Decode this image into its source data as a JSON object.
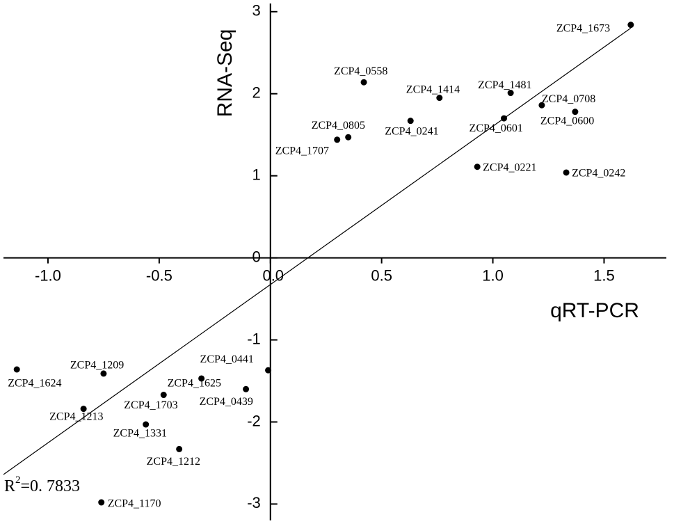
{
  "chart_data": {
    "type": "scatter",
    "x_label": "qRT-PCR",
    "y_label": "RNA-Seq",
    "xlim": [
      -1.2,
      1.78
    ],
    "ylim": [
      -3.2,
      3.1
    ],
    "xticks": [
      {
        "value": -1,
        "label": "-1.0"
      },
      -0.5,
      {
        "value": 0,
        "label": "0.0"
      },
      0.5,
      {
        "value": 1,
        "label": "1.0"
      },
      1.5
    ],
    "yticks": [
      -3,
      -2,
      -1,
      0,
      1,
      2,
      3
    ],
    "color": "#000000",
    "points": [
      "ZCP4_1673",
      "ZCP4_0558",
      "ZCP4_1414",
      "ZCP4_1481",
      "ZCP4_0708",
      "ZCP4_0600",
      "ZCP4_0601",
      "ZCP4_0241",
      "ZCP4_0805",
      "ZCP4_1707",
      "ZCP4_0221",
      "ZCP4_0242",
      "ZCP4_1624",
      "ZCP4_1209",
      "ZCP4_0441",
      "ZCP4_1625",
      "ZCP4_0439",
      "ZCP4_1703",
      "ZCP4_1213",
      "ZCP4_1331",
      "ZCP4_1212",
      "ZCP4_1170"
    ],
    "x": [
      1.62,
      0.42,
      0.76,
      1.08,
      1.22,
      1.37,
      1.05,
      0.63,
      0.35,
      0.3,
      0.93,
      1.33,
      -1.14,
      -0.75,
      -0.01,
      -0.31,
      -0.11,
      -0.48,
      -0.84,
      -0.56,
      -0.41,
      -0.76
    ],
    "values": [
      2.84,
      2.14,
      1.95,
      2.01,
      1.86,
      1.78,
      1.7,
      1.67,
      1.47,
      1.44,
      1.11,
      1.04,
      -1.36,
      -1.41,
      -1.37,
      -1.47,
      -1.6,
      -1.67,
      -1.84,
      -2.03,
      -2.33,
      -2.98
    ],
    "fit_line": {
      "x": [
        -1.2,
        1.62
      ],
      "y": [
        -2.64,
        2.8
      ]
    },
    "annotation": {
      "base": "R",
      "sup": "2",
      "text": "=0. 7833"
    }
  }
}
